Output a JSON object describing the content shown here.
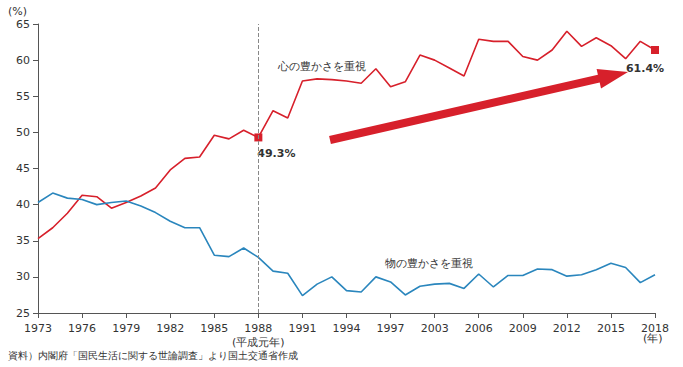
{
  "chart_data": {
    "type": "line",
    "y_label": "(%)",
    "x_label": "(年)",
    "source": "資料）内閣府「国民生活に関する世論調査」より国土交通省作成",
    "reference_x": "1988\n(平成元年)",
    "categories": [
      "1973",
      null,
      null,
      "1976",
      null,
      null,
      "1979",
      null,
      null,
      "1982",
      null,
      null,
      "1985",
      null,
      null,
      "1988\n(平成元年)",
      null,
      null,
      "1991",
      null,
      null,
      "1994",
      null,
      null,
      "1997",
      null,
      null,
      "2003",
      null,
      null,
      "2006",
      null,
      null,
      "2009",
      null,
      null,
      "2012",
      null,
      null,
      "2015",
      null,
      null,
      "2018"
    ],
    "series": [
      {
        "name": "心の豊かさを重視",
        "color": "#d7202b",
        "values": [
          35.3,
          36.8,
          38.8,
          41.3,
          41.1,
          39.5,
          40.3,
          41.2,
          42.3,
          44.8,
          46.4,
          46.6,
          49.6,
          49.1,
          50.3,
          49.3,
          53.0,
          52.0,
          57.1,
          57.4,
          57.3,
          57.1,
          56.8,
          58.8,
          56.3,
          57.0,
          60.7,
          60.0,
          58.9,
          57.8,
          62.9,
          62.6,
          62.6,
          60.5,
          60.0,
          61.4,
          64.0,
          61.9,
          63.1,
          62.0,
          60.2,
          62.6,
          61.4
        ],
        "value_labels": [
          null,
          null,
          null,
          null,
          null,
          null,
          null,
          null,
          null,
          null,
          null,
          null,
          null,
          null,
          null,
          "49.3%",
          null,
          null,
          null,
          null,
          null,
          null,
          null,
          null,
          null,
          null,
          null,
          null,
          null,
          null,
          null,
          null,
          null,
          null,
          null,
          null,
          null,
          null,
          null,
          null,
          null,
          null,
          "61.4%"
        ],
        "marker": "square"
      },
      {
        "name": "物の豊かさを重視",
        "color": "#2a86bd",
        "values": [
          40.3,
          41.6,
          40.9,
          40.7,
          40.0,
          40.3,
          40.5,
          39.8,
          38.9,
          37.7,
          36.8,
          36.8,
          33.0,
          32.8,
          34.0,
          32.7,
          30.8,
          30.5,
          27.4,
          29.0,
          30.0,
          28.1,
          27.9,
          30.0,
          29.3,
          27.5,
          28.7,
          29.0,
          29.1,
          28.4,
          30.4,
          28.6,
          30.2,
          30.2,
          31.1,
          31.0,
          30.1,
          30.3,
          31.0,
          31.9,
          31.3,
          29.2,
          30.3
        ]
      }
    ],
    "ylim": [
      25,
      65
    ],
    "yticks": [
      25,
      30,
      35,
      40,
      45,
      50,
      55,
      60,
      65
    ],
    "grid": false
  }
}
